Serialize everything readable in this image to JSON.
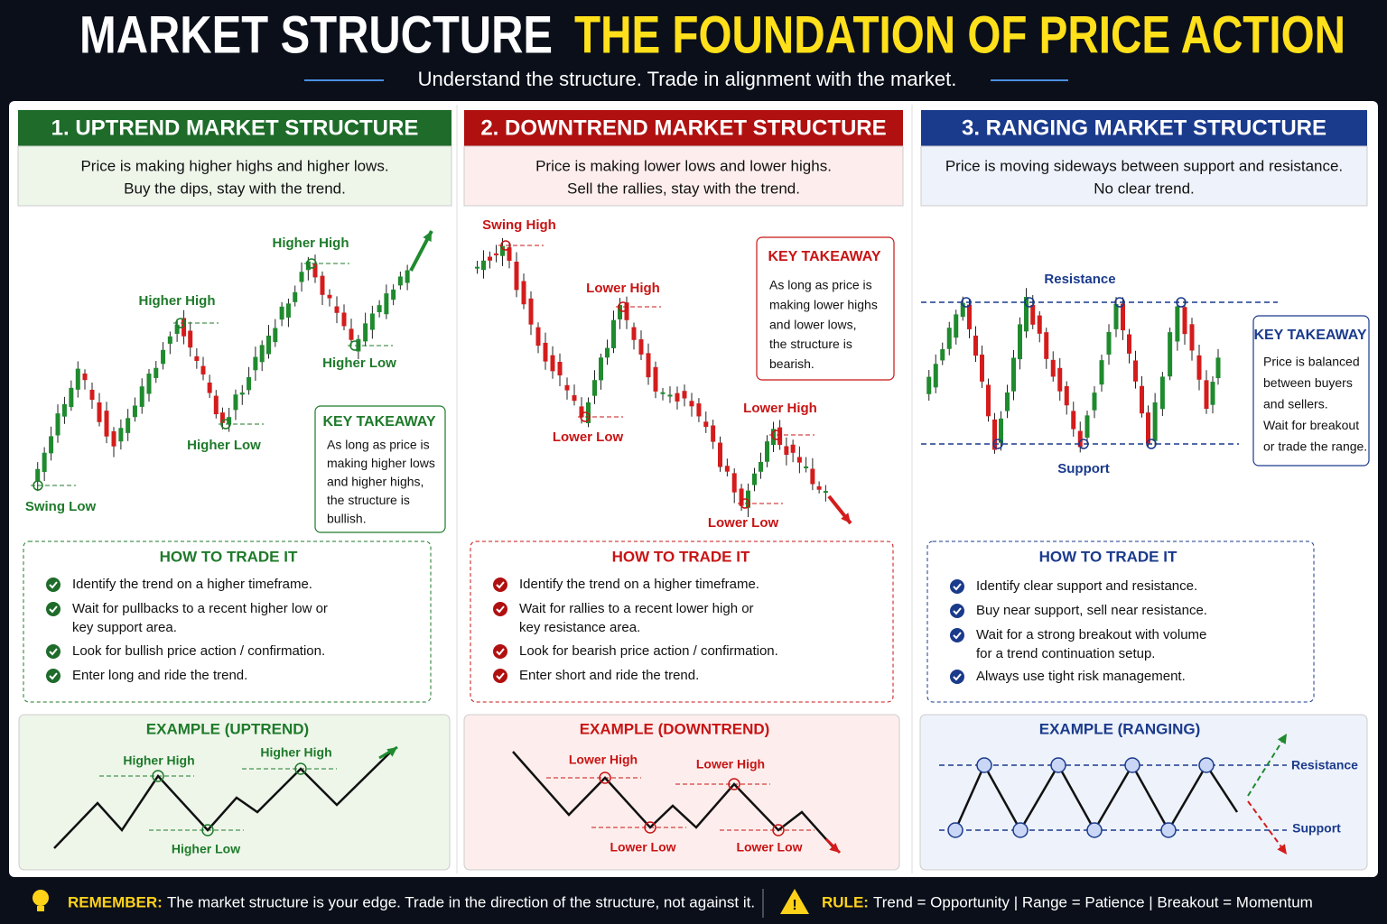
{
  "header": {
    "title": "MARKET STRUCTURE",
    "title_highlight": "THE FOUNDATION OF PRICE ACTION",
    "subtitle": "Understand the structure. Trade in alignment with the market."
  },
  "panels": [
    {
      "title": "1. UPTREND MARKET STRUCTURE",
      "description": [
        "Price is making higher highs and higher lows.",
        "Buy the dips, stay with the trend."
      ],
      "chart_labels": [
        "Swing Low",
        "Higher High",
        "Higher Low",
        "Higher High",
        "Higher Low"
      ],
      "takeaway": {
        "title": "KEY TAKEAWAY",
        "lines": [
          "As long as price is",
          "making higher lows",
          "and higher highs,",
          "the structure is",
          "bullish."
        ]
      },
      "how_to": {
        "title": "HOW TO TRADE IT",
        "items": [
          [
            "Identify the trend on a higher timeframe."
          ],
          [
            "Wait for pullbacks to a recent higher low or",
            "key support area."
          ],
          [
            "Look for bullish price action / confirmation."
          ],
          [
            "Enter long and ride the trend."
          ]
        ]
      },
      "example": {
        "title": "EXAMPLE (UPTREND)",
        "labels": [
          "Higher High",
          "Higher High",
          "Higher Low"
        ]
      }
    },
    {
      "title": "2. DOWNTREND MARKET STRUCTURE",
      "description": [
        "Price is making lower lows and lower highs.",
        "Sell the rallies, stay with the trend."
      ],
      "chart_labels": [
        "Swing High",
        "Lower High",
        "Lower Low",
        "Lower High",
        "Lower Low"
      ],
      "takeaway": {
        "title": "KEY TAKEAWAY",
        "lines": [
          "As long as price is",
          "making lower highs",
          "and lower lows,",
          "the structure is",
          "bearish."
        ]
      },
      "how_to": {
        "title": "HOW TO TRADE IT",
        "items": [
          [
            "Identify the trend on a higher timeframe."
          ],
          [
            "Wait for rallies to a recent lower high or",
            "key resistance area."
          ],
          [
            "Look for bearish price action / confirmation."
          ],
          [
            "Enter short and ride the trend."
          ]
        ]
      },
      "example": {
        "title": "EXAMPLE (DOWNTREND)",
        "labels": [
          "Lower High",
          "Lower High",
          "Lower Low",
          "Lower Low"
        ]
      }
    },
    {
      "title": "3. RANGING MARKET STRUCTURE",
      "description": [
        "Price is moving sideways between support and resistance.",
        "No clear trend."
      ],
      "chart_labels": [
        "Resistance",
        "Support"
      ],
      "takeaway": {
        "title": "KEY TAKEAWAY",
        "lines": [
          "Price is balanced",
          "between buyers",
          "and sellers.",
          "Wait for breakout",
          "or trade the range."
        ]
      },
      "how_to": {
        "title": "HOW TO TRADE IT",
        "items": [
          [
            "Identify clear support and resistance."
          ],
          [
            "Buy near support, sell near resistance."
          ],
          [
            "Wait for a strong breakout with volume",
            "for a trend continuation setup."
          ],
          [
            "Always use tight risk management."
          ]
        ]
      },
      "example": {
        "title": "EXAMPLE (RANGING)",
        "labels": [
          "Resistance",
          "Support"
        ]
      }
    }
  ],
  "footer": {
    "remember_label": "REMEMBER:",
    "remember_text": "The market structure is your edge. Trade in the direction of the structure, not against it.",
    "rule_label": "RULE:",
    "rule_text": "Trend = Opportunity | Range = Patience | Breakout = Momentum"
  }
}
